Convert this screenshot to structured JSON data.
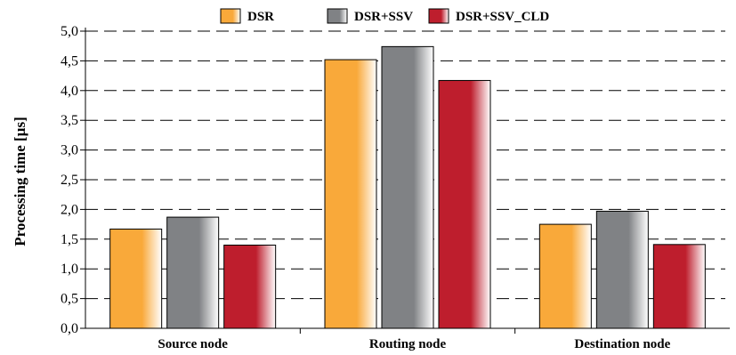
{
  "chart_data": {
    "type": "bar",
    "title": "",
    "xlabel": "",
    "ylabel": "Processing time [µs]",
    "categories": [
      "Source node",
      "Routing node",
      "Destination node"
    ],
    "series": [
      {
        "name": "DSR",
        "values": [
          1.67,
          4.52,
          1.75
        ],
        "color": "#F9A93A"
      },
      {
        "name": "DSR+SSV",
        "values": [
          1.87,
          4.74,
          1.97
        ],
        "color": "#808285"
      },
      {
        "name": "DSR+SSV_CLD",
        "values": [
          1.4,
          4.17,
          1.41
        ],
        "color": "#BE1E2D"
      }
    ],
    "ylim": [
      0,
      5
    ],
    "yticks": [
      "0,0",
      "0,5",
      "1,0",
      "1,5",
      "2,0",
      "2,5",
      "3,0",
      "3,5",
      "4,0",
      "4,5",
      "5,0"
    ],
    "grid": true,
    "grid_style": "dashed",
    "legend_position": "top-center"
  }
}
